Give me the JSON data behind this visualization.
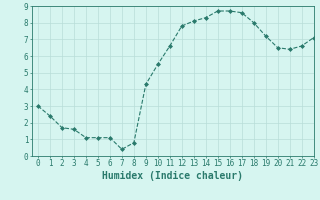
{
  "x": [
    0,
    1,
    2,
    3,
    4,
    5,
    6,
    7,
    8,
    9,
    10,
    11,
    12,
    13,
    14,
    15,
    16,
    17,
    18,
    19,
    20,
    21,
    22,
    23
  ],
  "y": [
    3.0,
    2.4,
    1.7,
    1.6,
    1.1,
    1.1,
    1.1,
    0.4,
    0.8,
    4.3,
    5.5,
    6.6,
    7.8,
    8.1,
    8.3,
    8.7,
    8.7,
    8.6,
    8.0,
    7.2,
    6.5,
    6.4,
    6.6,
    7.1
  ],
  "xlabel": "Humidex (Indice chaleur)",
  "ylim": [
    0,
    9
  ],
  "xlim": [
    -0.5,
    23
  ],
  "yticks": [
    0,
    1,
    2,
    3,
    4,
    5,
    6,
    7,
    8,
    9
  ],
  "xticks": [
    0,
    1,
    2,
    3,
    4,
    5,
    6,
    7,
    8,
    9,
    10,
    11,
    12,
    13,
    14,
    15,
    16,
    17,
    18,
    19,
    20,
    21,
    22,
    23
  ],
  "line_color": "#2a7a6c",
  "marker_color": "#2a7a6c",
  "bg_color": "#d6f5f0",
  "grid_color": "#b8ddd8",
  "axis_color": "#2a7a6c",
  "tick_label_color": "#2a7a6c",
  "xlabel_color": "#2a7a6c",
  "xlabel_fontsize": 7,
  "tick_fontsize": 5.5
}
